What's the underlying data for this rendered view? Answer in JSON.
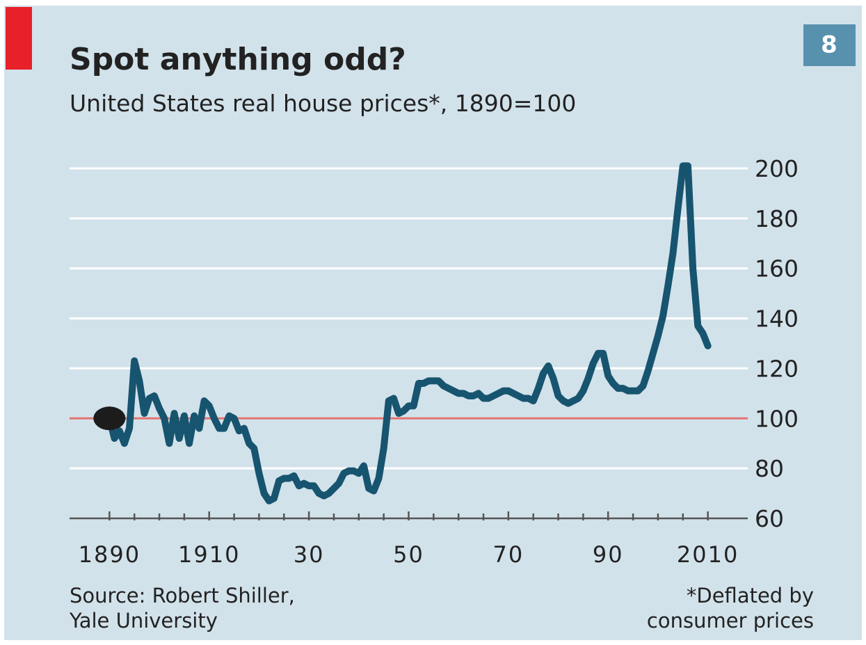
{
  "badge": "8",
  "chart_data": {
    "type": "line",
    "title": "Spot anything odd?",
    "subtitle": "United States real house prices*, 1890=100",
    "source": [
      "Source: Robert Shiller,",
      "Yale University"
    ],
    "footnote": [
      "*Deflated by",
      "consumer prices"
    ],
    "x": [
      1890,
      1891,
      1892,
      1893,
      1894,
      1895,
      1896,
      1897,
      1898,
      1899,
      1900,
      1901,
      1902,
      1903,
      1904,
      1905,
      1906,
      1907,
      1908,
      1909,
      1910,
      1911,
      1912,
      1913,
      1914,
      1915,
      1916,
      1917,
      1918,
      1919,
      1920,
      1921,
      1922,
      1923,
      1924,
      1925,
      1926,
      1927,
      1928,
      1929,
      1930,
      1931,
      1932,
      1933,
      1934,
      1935,
      1936,
      1937,
      1938,
      1939,
      1940,
      1941,
      1942,
      1943,
      1944,
      1945,
      1946,
      1947,
      1948,
      1949,
      1950,
      1951,
      1952,
      1953,
      1954,
      1955,
      1956,
      1957,
      1958,
      1959,
      1960,
      1961,
      1962,
      1963,
      1964,
      1965,
      1966,
      1967,
      1968,
      1969,
      1970,
      1971,
      1972,
      1973,
      1974,
      1975,
      1976,
      1977,
      1978,
      1979,
      1980,
      1981,
      1982,
      1983,
      1984,
      1985,
      1986,
      1987,
      1988,
      1989,
      1990,
      1991,
      1992,
      1993,
      1994,
      1995,
      1996,
      1997,
      1998,
      1999,
      2000,
      2001,
      2002,
      2003,
      2004,
      2005,
      2006,
      2007,
      2008,
      2009,
      2010
    ],
    "series": [
      {
        "name": "Real house prices",
        "color": "#17546f",
        "values": [
          100,
          92,
          95,
          90,
          96,
          123,
          115,
          102,
          108,
          109,
          104,
          100,
          90,
          102,
          92,
          101,
          90,
          101,
          96,
          107,
          105,
          100,
          96,
          96,
          101,
          100,
          95,
          96,
          90,
          88,
          78,
          70,
          67,
          68,
          75,
          76,
          76,
          77,
          73,
          74,
          73,
          73,
          70,
          69,
          70,
          72,
          74,
          78,
          79,
          79,
          78,
          81,
          72,
          71,
          76,
          88,
          107,
          108,
          102,
          103,
          105,
          105,
          114,
          114,
          115,
          115,
          115,
          113,
          112,
          111,
          110,
          110,
          109,
          109,
          110,
          108,
          108,
          109,
          110,
          111,
          111,
          110,
          109,
          108,
          108,
          107,
          112,
          118,
          121,
          116,
          109,
          107,
          106,
          107,
          108,
          111,
          116,
          122,
          126,
          126,
          117,
          114,
          112,
          112,
          111,
          111,
          111,
          113,
          119,
          126,
          133,
          141,
          153,
          166,
          184,
          201,
          201,
          160,
          137,
          134,
          129
        ]
      }
    ],
    "xlim": [
      1882,
      2018
    ],
    "xticks": [
      1890,
      1910,
      {
        "value": 1930,
        "label": "30"
      },
      {
        "value": 1950,
        "label": "50"
      },
      {
        "value": 1970,
        "label": "70"
      },
      {
        "value": 1990,
        "label": "90"
      },
      2010
    ],
    "xminorticks": [
      1895,
      1900,
      1905,
      1915,
      1920,
      1925,
      1935,
      1940,
      1945,
      1955,
      1960,
      1965,
      1975,
      1980,
      1985,
      1995,
      2000,
      2005
    ],
    "ylim": [
      60,
      200
    ],
    "yticks": [
      60,
      80,
      100,
      120,
      140,
      160,
      180,
      200
    ],
    "grid": true,
    "reference_line": {
      "value": 100,
      "color": "#e07272"
    },
    "marker": {
      "x": 1890,
      "y": 100,
      "color": "#1c1c1c"
    }
  }
}
